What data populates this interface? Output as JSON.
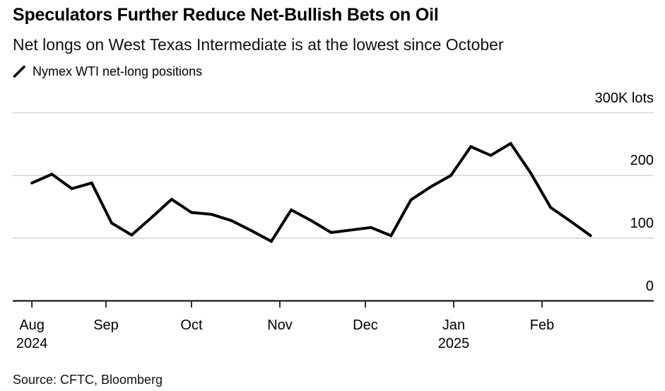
{
  "header": {
    "title": "Speculators Further Reduce Net-Bullish Bets on Oil",
    "subtitle": "Net longs on West Texas Intermediate is at the lowest since October"
  },
  "legend": {
    "label": "Nymex WTI net-long positions"
  },
  "source": {
    "text": "Source: CFTC, Bloomberg"
  },
  "colors": {
    "line": "#000000",
    "grid": "#d8d8d8",
    "axis": "#1a1a1a",
    "text": "#000000",
    "background": "#ffffff"
  },
  "chart_data": {
    "type": "line",
    "title": "Nymex WTI net-long positions",
    "unit": "K lots",
    "ylim": [
      0,
      300
    ],
    "grid": "horizontal",
    "legend_position": "top-left",
    "y_labels_position": "right",
    "x": [
      "2024-08-06",
      "2024-08-13",
      "2024-08-20",
      "2024-08-27",
      "2024-09-03",
      "2024-09-10",
      "2024-09-17",
      "2024-09-24",
      "2024-10-01",
      "2024-10-08",
      "2024-10-15",
      "2024-10-22",
      "2024-10-29",
      "2024-11-05",
      "2024-11-12",
      "2024-11-19",
      "2024-11-26",
      "2024-12-03",
      "2024-12-10",
      "2024-12-17",
      "2024-12-24",
      "2024-12-31",
      "2025-01-07",
      "2025-01-14",
      "2025-01-21",
      "2025-01-28",
      "2025-02-04",
      "2025-02-11",
      "2025-02-18"
    ],
    "series": [
      {
        "name": "Nymex WTI net-long positions",
        "values": [
          188,
          202,
          179,
          188,
          124,
          105,
          133,
          162,
          141,
          138,
          128,
          112,
          95,
          145,
          128,
          109,
          113,
          117,
          104,
          161,
          182,
          200,
          246,
          232,
          251,
          204,
          149,
          127,
          104
        ]
      }
    ],
    "yticks": [
      {
        "value": 0,
        "label": "0"
      },
      {
        "value": 100,
        "label": "100"
      },
      {
        "value": 200,
        "label": "200"
      },
      {
        "value": 300,
        "label": "300K lots"
      }
    ],
    "xticks": [
      {
        "date": "2024-08-06",
        "label": "Aug",
        "year": "2024"
      },
      {
        "date": "2024-09-01",
        "label": "Sep"
      },
      {
        "date": "2024-10-01",
        "label": "Oct"
      },
      {
        "date": "2024-11-01",
        "label": "Nov"
      },
      {
        "date": "2024-12-01",
        "label": "Dec"
      },
      {
        "date": "2025-01-01",
        "label": "Jan",
        "year": "2025"
      },
      {
        "date": "2025-02-01",
        "label": "Feb"
      }
    ]
  }
}
